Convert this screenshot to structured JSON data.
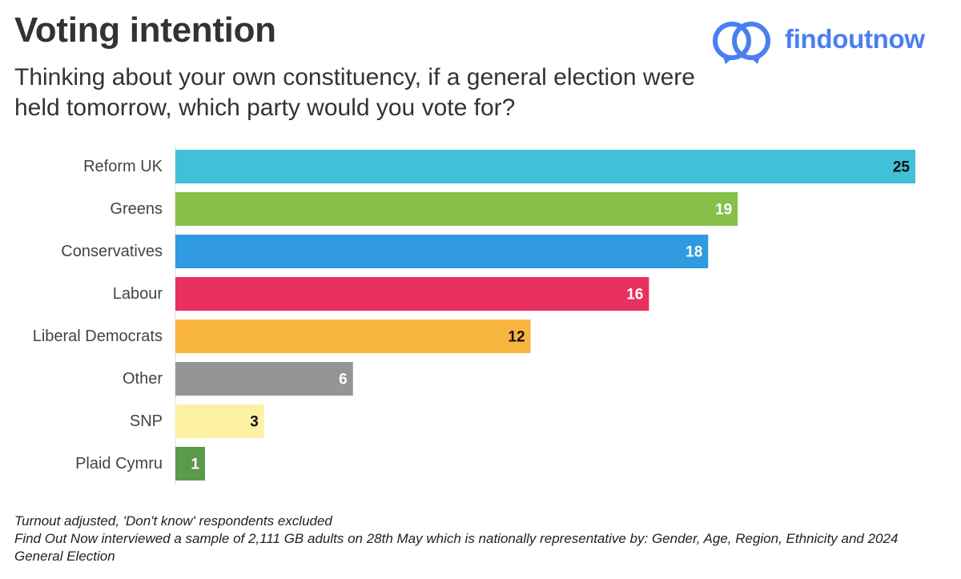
{
  "header": {
    "title": "Voting intention",
    "subtitle": "Thinking about your own constituency, if a general election were held tomorrow, which party would you vote for?"
  },
  "brand": {
    "name": "findoutnow",
    "color": "#4a7ff0"
  },
  "footnotes": {
    "line1": "Turnout adjusted, 'Don't know' respondents excluded",
    "line2": "Find Out Now interviewed a sample of 2,111 GB adults on 28th May which is nationally representative by: Gender, Age, Region, Ethnicity and 2024 General Election"
  },
  "chart_data": {
    "type": "bar",
    "orientation": "horizontal",
    "categories": [
      "Reform UK",
      "Greens",
      "Conservatives",
      "Labour",
      "Liberal Democrats",
      "Other",
      "SNP",
      "Plaid Cymru"
    ],
    "values": [
      25,
      19,
      18,
      16,
      12,
      6,
      3,
      1
    ],
    "colors": [
      "#41c1d8",
      "#86c04a",
      "#2f9ae0",
      "#e8305e",
      "#f8b540",
      "#959595",
      "#fdf2a4",
      "#5b9a4a"
    ],
    "label_text_colors": [
      "#111111",
      "#ffffff",
      "#ffffff",
      "#ffffff",
      "#111111",
      "#ffffff",
      "#111111",
      "#ffffff"
    ],
    "xlim": [
      0,
      25
    ],
    "grid": false,
    "legend": "none"
  }
}
